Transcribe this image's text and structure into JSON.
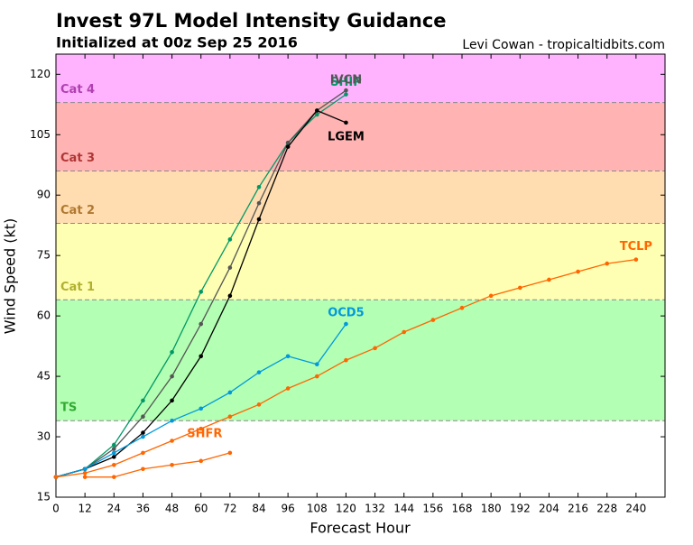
{
  "chart_data": {
    "type": "line",
    "title": "Invest 97L Model Intensity Guidance",
    "subtitle": "Initialized at 00z Sep 25 2016",
    "credit": "Levi Cowan - tropicaltidbits.com",
    "x_label": "Forecast Hour",
    "y_label": "Wind Speed (kt)",
    "xlim": [
      0,
      252
    ],
    "ylim": [
      15,
      125
    ],
    "xticks": [
      0,
      12,
      24,
      36,
      48,
      60,
      72,
      84,
      96,
      108,
      120,
      132,
      144,
      156,
      168,
      180,
      192,
      204,
      216,
      228,
      240
    ],
    "yticks": [
      15,
      30,
      45,
      60,
      75,
      90,
      105,
      120
    ],
    "bands": [
      {
        "name": "TS",
        "from": 34,
        "to": 64,
        "color": "#b3ffb3",
        "text_color": "#33aa33"
      },
      {
        "name": "Cat 1",
        "from": 64,
        "to": 83,
        "color": "#ffffb3",
        "text_color": "#b0b030"
      },
      {
        "name": "Cat 2",
        "from": 83,
        "to": 96,
        "color": "#ffddb0",
        "text_color": "#b07830"
      },
      {
        "name": "Cat 3",
        "from": 96,
        "to": 113,
        "color": "#ffb3b3",
        "text_color": "#b03535"
      },
      {
        "name": "Cat 4",
        "from": 113,
        "to": 137,
        "color": "#ffb3ff",
        "text_color": "#b040b0"
      }
    ],
    "x": [
      0,
      12,
      24,
      36,
      48,
      60,
      72,
      84,
      96,
      108,
      120,
      132,
      144,
      156,
      168,
      180,
      192,
      204,
      216,
      228,
      240
    ],
    "series": [
      {
        "name": "SHIP",
        "color": "#009966",
        "values": [
          20,
          22,
          28,
          39,
          51,
          66,
          79,
          92,
          103,
          110,
          115,
          null,
          null,
          null,
          null,
          null,
          null,
          null,
          null,
          null,
          null
        ]
      },
      {
        "name": "IVCN",
        "color": "#555555",
        "values": [
          20,
          22,
          27,
          35,
          45,
          58,
          72,
          88,
          103,
          111,
          116,
          null,
          null,
          null,
          null,
          null,
          null,
          null,
          null,
          null,
          null
        ]
      },
      {
        "name": "LGEM",
        "color": "#000000",
        "values": [
          20,
          22,
          25,
          31,
          39,
          50,
          65,
          84,
          102,
          111,
          108,
          null,
          null,
          null,
          null,
          null,
          null,
          null,
          null,
          null,
          null
        ]
      },
      {
        "name": "OCD5",
        "color": "#0099dd",
        "values": [
          20,
          22,
          26,
          30,
          34,
          37,
          41,
          46,
          50,
          48,
          58,
          null,
          null,
          null,
          null,
          null,
          null,
          null,
          null,
          null,
          null
        ]
      },
      {
        "name": "TCLP",
        "color": "#ff6600",
        "values": [
          20,
          21,
          23,
          26,
          29,
          32,
          35,
          38,
          42,
          45,
          49,
          52,
          56,
          59,
          62,
          65,
          67,
          69,
          71,
          73,
          74
        ]
      },
      {
        "name": "SHFR",
        "color": "#ff6600",
        "values": [
          null,
          20,
          20,
          22,
          23,
          24,
          26,
          null,
          null,
          null,
          null,
          null,
          null,
          null,
          null,
          null,
          null,
          null,
          null,
          null,
          null
        ]
      }
    ]
  }
}
